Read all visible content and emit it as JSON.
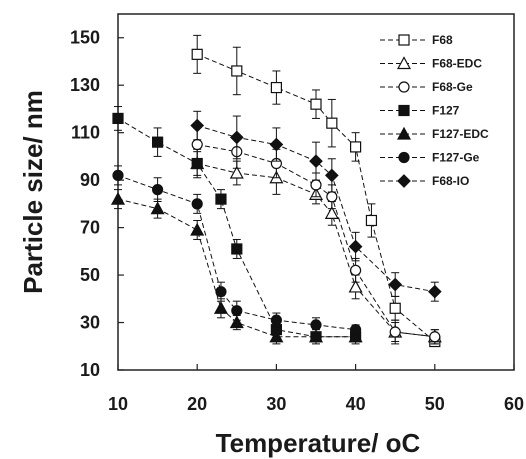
{
  "chart_data": {
    "type": "scatter",
    "xlabel": "Temperature/ ",
    "xlabel_unit": "oC",
    "ylabel": "Particle size/ nm",
    "xlim": [
      10,
      60
    ],
    "ylim": [
      10,
      160
    ],
    "x_ticks": [
      10,
      20,
      30,
      40,
      50,
      60
    ],
    "y_ticks": [
      10,
      30,
      50,
      70,
      90,
      110,
      130,
      150
    ],
    "grid": false,
    "legend_position": "top-right",
    "line_style": "dashed",
    "series": [
      {
        "name": "F68",
        "marker": "square-open",
        "x": [
          20,
          25,
          30,
          35,
          37,
          40,
          42,
          45,
          50
        ],
        "y": [
          143,
          136,
          129,
          122,
          114,
          104,
          73,
          36,
          22
        ],
        "err": [
          8,
          10,
          7,
          6,
          10,
          6,
          7,
          5,
          2
        ]
      },
      {
        "name": "F68-EDC",
        "marker": "triangle-open",
        "x": [
          20,
          25,
          30,
          35,
          37,
          40,
          45,
          50
        ],
        "y": [
          97,
          93,
          91,
          84,
          76,
          45,
          26,
          24
        ],
        "err": [
          6,
          5,
          7,
          4,
          5,
          5,
          4,
          3
        ]
      },
      {
        "name": "F68-Ge",
        "marker": "circle-open",
        "x": [
          20,
          25,
          30,
          35,
          37,
          40,
          45,
          50
        ],
        "y": [
          105,
          102,
          97,
          88,
          83,
          52,
          26,
          24
        ],
        "err": [
          7,
          7,
          6,
          5,
          5,
          5,
          5,
          3
        ]
      },
      {
        "name": "F127",
        "marker": "square-filled",
        "x": [
          10,
          15,
          20,
          23,
          25,
          30,
          35,
          40
        ],
        "y": [
          116,
          106,
          97,
          82,
          61,
          27,
          24,
          24
        ],
        "err": [
          5,
          6,
          5,
          4,
          4,
          4,
          3,
          3
        ]
      },
      {
        "name": "F127-EDC",
        "marker": "triangle-filled",
        "x": [
          10,
          15,
          20,
          23,
          25,
          30,
          35,
          40
        ],
        "y": [
          82,
          78,
          69,
          36,
          30,
          24,
          24,
          24
        ],
        "err": [
          4,
          4,
          4,
          4,
          3,
          3,
          2,
          2
        ]
      },
      {
        "name": "F127-Ge",
        "marker": "circle-filled",
        "x": [
          10,
          15,
          20,
          23,
          25,
          30,
          35,
          40
        ],
        "y": [
          92,
          86,
          80,
          43,
          35,
          31,
          29,
          27
        ],
        "err": [
          4,
          5,
          4,
          4,
          4,
          3,
          3,
          2
        ]
      },
      {
        "name": "F68-IO",
        "marker": "diamond-filled",
        "x": [
          20,
          25,
          30,
          35,
          37,
          40,
          45,
          50
        ],
        "y": [
          113,
          108,
          105,
          98,
          92,
          62,
          46,
          43
        ],
        "err": [
          6,
          9,
          7,
          8,
          7,
          6,
          5,
          4
        ]
      }
    ]
  }
}
